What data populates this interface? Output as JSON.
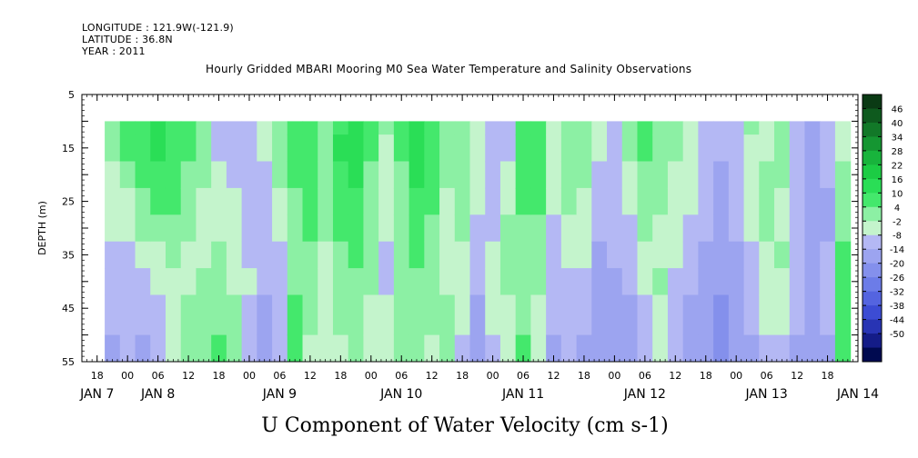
{
  "header": {
    "longitude": "LONGITUDE : 121.9W(-121.9)",
    "latitude": "LATITUDE : 36.8N",
    "year": "YEAR : 2011"
  },
  "chart_data": {
    "type": "heatmap",
    "title": "Hourly Gridded MBARI Mooring M0 Sea Water Temperature and Salinity Observations",
    "xlabel": "U Component of Water Velocity (cm s-1)",
    "ylabel": "DEPTH (m)",
    "y_axis": {
      "ticks": [
        5,
        15,
        25,
        35,
        45,
        55
      ],
      "tick_labels": [
        "5",
        "15",
        "25",
        "35",
        "45",
        "55"
      ],
      "range": [
        5,
        55
      ],
      "inverted": true
    },
    "x_axis": {
      "range_hours": [
        -9,
        144
      ],
      "hour_ticks": [
        -6,
        0,
        6,
        12,
        18,
        24,
        30,
        36,
        42,
        48,
        54,
        60,
        66,
        72,
        78,
        84,
        90,
        96,
        102,
        108,
        114,
        120,
        126,
        132,
        138
      ],
      "hour_tick_labels": [
        "18",
        "00",
        "06",
        "12",
        "18",
        "00",
        "06",
        "12",
        "18",
        "00",
        "06",
        "12",
        "18",
        "00",
        "06",
        "12",
        "18",
        "00",
        "06",
        "12",
        "18",
        "00",
        "06",
        "12",
        "18"
      ],
      "day_labels": [
        "JAN  7",
        "JAN  8",
        "JAN  9",
        "JAN 10",
        "JAN 11",
        "JAN 12",
        "JAN 13",
        "JAN 14"
      ],
      "day_label_hours": [
        -6,
        6,
        30,
        54,
        78,
        102,
        126,
        144
      ]
    },
    "data_extent": {
      "depth_top": 10,
      "depth_bottom": 55
    },
    "colorbar": {
      "labels": [
        "46",
        "40",
        "34",
        "28",
        "22",
        "16",
        "10",
        "4",
        "-2",
        "-8",
        "-14",
        "-20",
        "-26",
        "-32",
        "-38",
        "-44",
        "-50"
      ],
      "levels": [
        52,
        46,
        40,
        34,
        28,
        22,
        16,
        10,
        4,
        -2,
        -8,
        -14,
        -20,
        -26,
        -32,
        -38,
        -44,
        -50
      ],
      "colors": [
        "#0a3a14",
        "#0e5a1e",
        "#127828",
        "#159632",
        "#18b43c",
        "#1ccc44",
        "#2ade56",
        "#44e86c",
        "#8cf0a4",
        "#c4f4cc",
        "#b4b8f4",
        "#9ca4f0",
        "#8490ec",
        "#6c7ce8",
        "#5464e0",
        "#3c4cd4",
        "#2834b4",
        "#141c88",
        "#000a50"
      ]
    },
    "columns": [
      {
        "hour": -3,
        "profile": [
          6,
          4,
          2,
          0,
          -2,
          -4,
          -6,
          -8,
          -10
        ]
      },
      {
        "hour": 0,
        "profile": [
          12,
          10,
          6,
          2,
          -2,
          -4,
          -4,
          -6,
          -8
        ]
      },
      {
        "hour": 3,
        "profile": [
          14,
          14,
          12,
          8,
          4,
          -2,
          -6,
          -8,
          -10
        ]
      },
      {
        "hour": 6,
        "profile": [
          16,
          16,
          14,
          10,
          6,
          2,
          -2,
          -4,
          -4
        ]
      },
      {
        "hour": 9,
        "profile": [
          14,
          14,
          12,
          10,
          8,
          4,
          2,
          0,
          -2
        ]
      },
      {
        "hour": 12,
        "profile": [
          10,
          10,
          8,
          6,
          4,
          2,
          2,
          4,
          6
        ]
      },
      {
        "hour": 15,
        "profile": [
          6,
          4,
          4,
          2,
          2,
          2,
          4,
          6,
          8
        ]
      },
      {
        "hour": 18,
        "profile": [
          -4,
          -4,
          -2,
          0,
          2,
          4,
          6,
          8,
          10
        ]
      },
      {
        "hour": 21,
        "profile": [
          -6,
          -6,
          -4,
          -2,
          0,
          2,
          2,
          4,
          4
        ]
      },
      {
        "hour": 24,
        "profile": [
          -4,
          -4,
          -6,
          -6,
          -4,
          -4,
          -2,
          -4,
          -6
        ]
      },
      {
        "hour": 27,
        "profile": [
          -2,
          -2,
          -4,
          -4,
          -6,
          -6,
          -8,
          -10,
          -12
        ]
      },
      {
        "hour": 30,
        "profile": [
          6,
          6,
          4,
          2,
          -2,
          -4,
          -6,
          -6,
          -4
        ]
      },
      {
        "hour": 33,
        "profile": [
          12,
          12,
          10,
          8,
          6,
          4,
          8,
          12,
          14
        ]
      },
      {
        "hour": 36,
        "profile": [
          14,
          14,
          14,
          12,
          10,
          8,
          6,
          4,
          2
        ]
      },
      {
        "hour": 39,
        "profile": [
          8,
          8,
          8,
          6,
          4,
          2,
          2,
          0,
          -2
        ]
      },
      {
        "hour": 42,
        "profile": [
          14,
          16,
          14,
          12,
          10,
          8,
          6,
          4,
          2
        ]
      },
      {
        "hour": 45,
        "profile": [
          16,
          16,
          16,
          14,
          12,
          10,
          8,
          6,
          4
        ]
      },
      {
        "hour": 48,
        "profile": [
          10,
          10,
          8,
          6,
          6,
          4,
          4,
          2,
          0
        ]
      },
      {
        "hour": 51,
        "profile": [
          4,
          2,
          2,
          0,
          -2,
          -4,
          -4,
          -2,
          -2
        ]
      },
      {
        "hour": 54,
        "profile": [
          10,
          10,
          8,
          8,
          6,
          6,
          4,
          4,
          4
        ]
      },
      {
        "hour": 57,
        "profile": [
          18,
          18,
          16,
          14,
          12,
          10,
          8,
          6,
          4
        ]
      },
      {
        "hour": 60,
        "profile": [
          12,
          12,
          12,
          10,
          8,
          6,
          4,
          4,
          2
        ]
      },
      {
        "hour": 63,
        "profile": [
          4,
          4,
          4,
          2,
          2,
          0,
          2,
          4,
          6
        ]
      },
      {
        "hour": 66,
        "profile": [
          6,
          6,
          6,
          4,
          4,
          2,
          0,
          -2,
          -4
        ]
      },
      {
        "hour": 69,
        "profile": [
          2,
          0,
          -2,
          -2,
          -4,
          -6,
          -8,
          -10,
          -10
        ]
      },
      {
        "hour": 72,
        "profile": [
          -6,
          -8,
          -8,
          -6,
          -4,
          -2,
          0,
          -2,
          -4
        ]
      },
      {
        "hour": 75,
        "profile": [
          -4,
          -4,
          -2,
          0,
          4,
          6,
          4,
          2,
          0
        ]
      },
      {
        "hour": 78,
        "profile": [
          12,
          12,
          10,
          10,
          8,
          6,
          6,
          8,
          10
        ]
      },
      {
        "hour": 81,
        "profile": [
          14,
          14,
          12,
          10,
          8,
          6,
          4,
          2,
          0
        ]
      },
      {
        "hour": 84,
        "profile": [
          0,
          0,
          -2,
          -2,
          -4,
          -6,
          -6,
          -8,
          -10
        ]
      },
      {
        "hour": 87,
        "profile": [
          8,
          8,
          6,
          4,
          2,
          0,
          -4,
          -6,
          -8
        ]
      },
      {
        "hour": 90,
        "profile": [
          4,
          4,
          4,
          2,
          0,
          -2,
          -6,
          -8,
          -10
        ]
      },
      {
        "hour": 93,
        "profile": [
          -2,
          -2,
          -4,
          -6,
          -8,
          -10,
          -12,
          -14,
          -14
        ]
      },
      {
        "hour": 96,
        "profile": [
          -8,
          -8,
          -8,
          -6,
          -6,
          -8,
          -10,
          -12,
          -14
        ]
      },
      {
        "hour": 99,
        "profile": [
          6,
          4,
          2,
          -2,
          -4,
          -6,
          -8,
          -10,
          -12
        ]
      },
      {
        "hour": 102,
        "profile": [
          12,
          10,
          8,
          6,
          4,
          2,
          -2,
          -4,
          -6
        ]
      },
      {
        "hour": 105,
        "profile": [
          8,
          8,
          6,
          4,
          2,
          0,
          4,
          2,
          0
        ]
      },
      {
        "hour": 108,
        "profile": [
          4,
          4,
          2,
          2,
          0,
          -2,
          -4,
          -6,
          -8
        ]
      },
      {
        "hour": 111,
        "profile": [
          2,
          2,
          0,
          -2,
          -4,
          -6,
          -8,
          -10,
          -10
        ]
      },
      {
        "hour": 114,
        "profile": [
          -4,
          -4,
          -6,
          -6,
          -8,
          -10,
          -12,
          -14,
          -14
        ]
      },
      {
        "hour": 117,
        "profile": [
          -8,
          -8,
          -10,
          -10,
          -12,
          -14,
          -14,
          -16,
          -16
        ]
      },
      {
        "hour": 120,
        "profile": [
          -4,
          -4,
          -4,
          -6,
          -8,
          -10,
          -12,
          -14,
          -14
        ]
      },
      {
        "hour": 123,
        "profile": [
          4,
          2,
          2,
          0,
          -2,
          -4,
          -6,
          -8,
          -10
        ]
      },
      {
        "hour": 126,
        "profile": [
          2,
          2,
          4,
          6,
          4,
          2,
          0,
          -2,
          -6
        ]
      },
      {
        "hour": 129,
        "profile": [
          4,
          4,
          4,
          2,
          2,
          4,
          2,
          -2,
          -6
        ]
      },
      {
        "hour": 132,
        "profile": [
          -6,
          -6,
          -8,
          -8,
          -8,
          -6,
          -6,
          -8,
          -10
        ]
      },
      {
        "hour": 135,
        "profile": [
          -10,
          -10,
          -12,
          -12,
          -12,
          -10,
          -10,
          -12,
          -12
        ]
      },
      {
        "hour": 138,
        "profile": [
          -8,
          -8,
          -8,
          -10,
          -10,
          -8,
          -6,
          -8,
          -10
        ]
      },
      {
        "hour": 141,
        "profile": [
          0,
          2,
          4,
          6,
          8,
          10,
          12,
          12,
          10
        ]
      }
    ],
    "column_depths": [
      10,
      15,
      20,
      25,
      30,
      35,
      40,
      45,
      55
    ]
  }
}
